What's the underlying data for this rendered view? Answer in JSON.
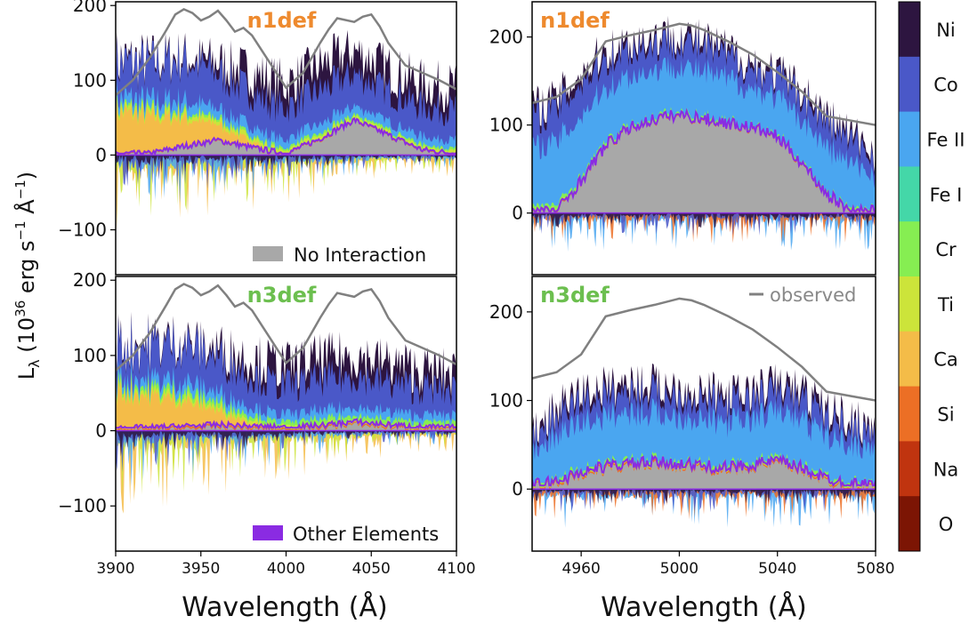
{
  "chart_data": {
    "type": "area",
    "ylabel": "Lλ (10^36 erg s^-1 Å^-1)",
    "ylabel_main": "L",
    "ylabel_sub": "λ",
    "ylabel_paren": "(10",
    "ylabel_exp1": "36",
    "ylabel_mid": " erg s",
    "ylabel_exp2": "−1",
    "ylabel_ang": " Å",
    "ylabel_exp3": "−1",
    "ylabel_close": ")",
    "xlabel": "Wavelength (Å)",
    "colorbar": {
      "elements": [
        "Ni",
        "Co",
        "Fe II",
        "Fe I",
        "Cr",
        "Ti",
        "Ca",
        "Si",
        "Na",
        "O"
      ],
      "colors": [
        "#2d1540",
        "#4a58c8",
        "#4aa6f0",
        "#44d7a8",
        "#86ee52",
        "#cce43a",
        "#f4bc48",
        "#ec6f25",
        "#c0340f",
        "#7c1504"
      ]
    },
    "legend": {
      "no_interaction": "No Interaction",
      "no_interaction_color": "#a8a8a8",
      "other_elements": "Other Elements",
      "other_elements_color": "#8a2be2",
      "observed": "observed",
      "observed_color": "#808080"
    },
    "panels": [
      {
        "id": "top-left",
        "title": "n1def",
        "title_color": "#ee8a2e",
        "xlim": [
          3900,
          4100
        ],
        "ylim": [
          -160,
          205
        ],
        "xticks": [],
        "yticks": [
          200,
          100,
          0,
          -100
        ],
        "observed_x": [
          3900,
          3910,
          3920,
          3930,
          3935,
          3940,
          3945,
          3950,
          3955,
          3960,
          3965,
          3970,
          3975,
          3980,
          3990,
          4000,
          4010,
          4020,
          4025,
          4030,
          4040,
          4045,
          4050,
          4055,
          4060,
          4070,
          4080,
          4090,
          4100
        ],
        "observed_y": [
          80,
          100,
          130,
          168,
          188,
          195,
          190,
          180,
          185,
          193,
          180,
          165,
          170,
          160,
          125,
          90,
          110,
          150,
          168,
          183,
          178,
          185,
          188,
          172,
          150,
          120,
          110,
          100,
          88
        ],
        "total_x": [
          3900,
          3920,
          3940,
          3960,
          3980,
          4000,
          4020,
          4040,
          4060,
          4080,
          4100
        ],
        "total_y": [
          100,
          110,
          130,
          125,
          110,
          95,
          120,
          140,
          115,
          95,
          90
        ],
        "no_interaction_y": [
          0,
          0,
          10,
          18,
          8,
          0,
          20,
          45,
          25,
          5,
          0
        ]
      },
      {
        "id": "bottom-left",
        "title": "n3def",
        "title_color": "#6cbf4f",
        "xlim": [
          3900,
          4100
        ],
        "ylim": [
          -160,
          205
        ],
        "xticks": [
          3900,
          3950,
          4000,
          4050,
          4100
        ],
        "yticks": [
          200,
          100,
          0,
          -100
        ],
        "observed_x": [
          3900,
          3910,
          3920,
          3930,
          3935,
          3940,
          3945,
          3950,
          3955,
          3960,
          3965,
          3970,
          3975,
          3980,
          3990,
          4000,
          4010,
          4020,
          4025,
          4030,
          4040,
          4045,
          4050,
          4055,
          4060,
          4070,
          4080,
          4090,
          4100
        ],
        "observed_y": [
          80,
          100,
          130,
          168,
          188,
          195,
          190,
          180,
          185,
          193,
          180,
          165,
          170,
          160,
          125,
          90,
          110,
          150,
          168,
          183,
          178,
          185,
          188,
          172,
          150,
          120,
          110,
          100,
          88
        ],
        "total_x": [
          3900,
          3920,
          3940,
          3960,
          3980,
          4000,
          4020,
          4040,
          4060,
          4080,
          4100
        ],
        "total_y": [
          90,
          100,
          115,
          110,
          95,
          85,
          95,
          100,
          90,
          80,
          75
        ],
        "no_interaction_y": [
          0,
          0,
          2,
          4,
          2,
          0,
          3,
          8,
          4,
          1,
          0
        ]
      },
      {
        "id": "top-right",
        "title": "n1def",
        "title_color": "#ee8a2e",
        "xlim": [
          4940,
          5080
        ],
        "ylim": [
          -70,
          240
        ],
        "xticks": [],
        "yticks": [
          200,
          100,
          0
        ],
        "observed_x": [
          4940,
          4950,
          4960,
          4970,
          4980,
          4990,
          5000,
          5005,
          5010,
          5020,
          5030,
          5040,
          5050,
          5060,
          5070,
          5080
        ],
        "observed_y": [
          125,
          132,
          152,
          195,
          202,
          208,
          215,
          213,
          208,
          195,
          180,
          160,
          138,
          110,
          105,
          100
        ],
        "total_x": [
          4940,
          4950,
          4960,
          4970,
          4980,
          4990,
          5000,
          5010,
          5020,
          5030,
          5040,
          5050,
          5060,
          5070,
          5080
        ],
        "total_y": [
          120,
          130,
          160,
          185,
          195,
          200,
          205,
          195,
          185,
          170,
          160,
          140,
          110,
          90,
          70
        ],
        "no_interaction_y": [
          0,
          0,
          35,
          75,
          95,
          105,
          110,
          105,
          100,
          95,
          85,
          55,
          20,
          0,
          0
        ]
      },
      {
        "id": "bottom-right",
        "title": "n3def",
        "title_color": "#6cbf4f",
        "xlim": [
          4940,
          5080
        ],
        "ylim": [
          -70,
          240
        ],
        "xticks": [
          4960,
          5000,
          5040,
          5080
        ],
        "yticks": [
          200,
          100,
          0
        ],
        "observed_x": [
          4940,
          4950,
          4960,
          4970,
          4980,
          4990,
          5000,
          5005,
          5010,
          5020,
          5030,
          5040,
          5050,
          5060,
          5070,
          5080
        ],
        "observed_y": [
          125,
          132,
          152,
          195,
          202,
          208,
          215,
          213,
          208,
          195,
          180,
          160,
          138,
          110,
          105,
          100
        ],
        "total_x": [
          4940,
          4950,
          4960,
          4970,
          4980,
          4990,
          5000,
          5010,
          5020,
          5030,
          5040,
          5050,
          5060,
          5070,
          5080
        ],
        "total_y": [
          65,
          90,
          110,
          115,
          120,
          118,
          115,
          110,
          105,
          110,
          120,
          110,
          90,
          80,
          70
        ],
        "no_interaction_y": [
          0,
          5,
          15,
          22,
          25,
          26,
          25,
          22,
          20,
          24,
          28,
          20,
          8,
          2,
          0
        ]
      }
    ]
  }
}
